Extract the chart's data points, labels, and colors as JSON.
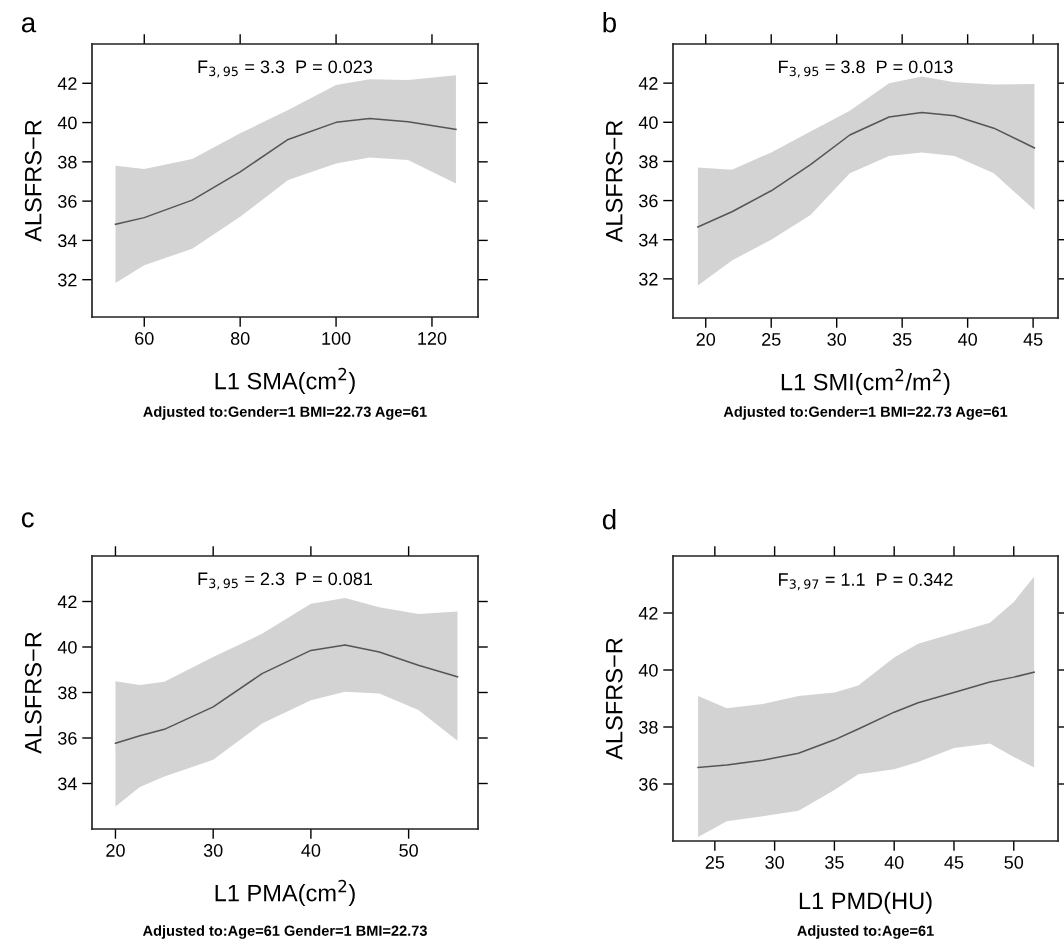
{
  "chart_data": [
    {
      "type": "line",
      "title": "a",
      "xlabel": "L1 SMA(cm$^{2}$)",
      "ylabel": "ALSFRS−R",
      "annotations": [
        "F$_{3,95}$ = 3.3  P = 0.023",
        "Adjusted to:Gender=1 BMI=22.73 Age=61"
      ],
      "xlim": [
        49.1,
        129.6
      ],
      "ylim": [
        30.1,
        44.0
      ],
      "xticks": [
        60,
        80,
        100,
        120
      ],
      "yticks": [
        32,
        34,
        36,
        38,
        40,
        42
      ],
      "grid": false,
      "marker": "none",
      "line_style": "solid",
      "series": [
        {
          "color": "#555555",
          "x": [
            54,
            60,
            70,
            80,
            90,
            100,
            107,
            115,
            125
          ],
          "values": [
            34.82,
            35.16,
            36.05,
            37.49,
            39.14,
            40.01,
            40.21,
            40.04,
            39.65
          ],
          "upper": [
            37.8,
            37.63,
            38.14,
            39.45,
            40.64,
            41.91,
            42.2,
            42.17,
            42.41
          ],
          "lower": [
            31.83,
            32.73,
            33.58,
            35.2,
            37.07,
            37.92,
            38.22,
            38.09,
            36.9
          ]
        }
      ]
    },
    {
      "type": "line",
      "title": "b",
      "xlabel": "L1 SMI(cm$^{2}$/m$^{2}$)",
      "ylabel": "ALSFRS−R",
      "annotations": [
        "F$_{3,95}$ = 3.8  P = 0.013",
        "Adjusted to:Gender=1 BMI=22.73 Age=61"
      ],
      "xlim": [
        17.5,
        46.9
      ],
      "ylim": [
        30.0,
        44.0
      ],
      "xticks": [
        20,
        25,
        30,
        35,
        40,
        45
      ],
      "yticks": [
        32,
        34,
        36,
        38,
        40,
        42
      ],
      "grid": false,
      "marker": "none",
      "line_style": "solid",
      "series": [
        {
          "color": "#555555",
          "x": [
            19.4,
            22,
            25,
            28,
            31,
            34,
            36.5,
            39,
            42,
            45.1
          ],
          "values": [
            34.65,
            35.43,
            36.5,
            37.84,
            39.35,
            40.27,
            40.5,
            40.33,
            39.7,
            38.69
          ],
          "upper": [
            37.69,
            37.57,
            38.46,
            39.53,
            40.59,
            42.0,
            42.34,
            42.05,
            41.93,
            41.95
          ],
          "lower": [
            31.66,
            32.94,
            34.0,
            35.26,
            37.39,
            38.28,
            38.46,
            38.28,
            37.39,
            35.52
          ]
        }
      ]
    },
    {
      "type": "line",
      "title": "c",
      "xlabel": "L1 PMA(cm$^{2}$)",
      "ylabel": "ALSFRS−R",
      "annotations": [
        "F$_{3,95}$ = 2.3  P = 0.081",
        "Adjusted to:Age=61 Gender=1 BMI=22.73"
      ],
      "xlim": [
        17.6,
        57.1
      ],
      "ylim": [
        32.0,
        44.0
      ],
      "xticks": [
        20,
        30,
        40,
        50
      ],
      "yticks": [
        34,
        36,
        38,
        40,
        42
      ],
      "grid": false,
      "marker": "none",
      "line_style": "solid",
      "series": [
        {
          "color": "#555555",
          "x": [
            20,
            22.5,
            25,
            30,
            35,
            40,
            43.5,
            47,
            51,
            55
          ],
          "values": [
            35.77,
            36.1,
            36.38,
            37.37,
            38.83,
            39.85,
            40.09,
            39.78,
            39.2,
            38.69
          ],
          "upper": [
            38.5,
            38.33,
            38.47,
            39.56,
            40.58,
            41.9,
            42.15,
            41.75,
            41.45,
            41.56
          ],
          "lower": [
            32.99,
            33.85,
            34.31,
            35.04,
            36.64,
            37.66,
            38.03,
            37.96,
            37.23,
            35.88
          ]
        }
      ]
    },
    {
      "type": "line",
      "title": "d",
      "xlabel": "L1 PMD(HU)",
      "ylabel": "ALSFRS−R",
      "annotations": [
        "F$_{3,97}$ = 1.1  P = 0.342",
        "Adjusted to:Age=61"
      ],
      "xlim": [
        21.5,
        53.7
      ],
      "ylim": [
        34.0,
        44.0
      ],
      "xticks": [
        25,
        30,
        35,
        40,
        45,
        50
      ],
      "yticks": [
        36,
        38,
        40,
        42
      ],
      "grid": false,
      "marker": "none",
      "line_style": "solid",
      "series": [
        {
          "color": "#555555",
          "x": [
            23.6,
            26,
            29,
            32,
            35,
            37,
            40,
            42,
            45,
            48,
            50,
            51.7
          ],
          "values": [
            36.58,
            36.67,
            36.83,
            37.08,
            37.55,
            37.93,
            38.52,
            38.85,
            39.21,
            39.58,
            39.75,
            39.92
          ],
          "upper": [
            39.09,
            38.66,
            38.81,
            39.09,
            39.21,
            39.46,
            40.44,
            40.92,
            41.29,
            41.66,
            42.39,
            43.27
          ],
          "lower": [
            34.14,
            34.69,
            34.87,
            35.06,
            35.79,
            36.34,
            36.52,
            36.77,
            37.26,
            37.42,
            36.95,
            36.58
          ]
        }
      ]
    }
  ]
}
